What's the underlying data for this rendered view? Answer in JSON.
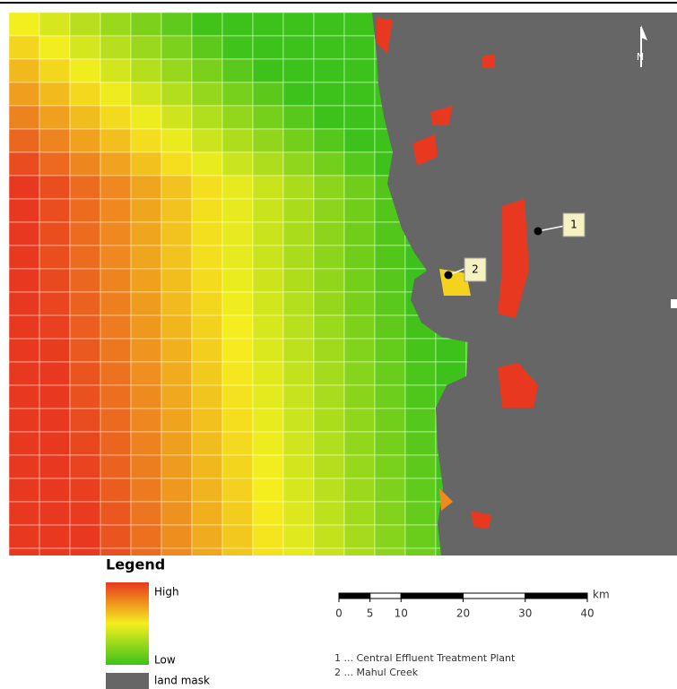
{
  "map": {
    "north": "N",
    "markers": [
      {
        "label": "1"
      },
      {
        "label": "2"
      }
    ],
    "legend": {
      "title": "Legend",
      "high": "High",
      "low": "Low",
      "land_mask": "land mask"
    },
    "scale_bar": {
      "unit": "km",
      "ticks": [
        0,
        5,
        10,
        20,
        30,
        40
      ]
    },
    "notes": [
      "1 ... Central Effluent Treatment Plant",
      "2 ... Mahul Creek"
    ]
  }
}
